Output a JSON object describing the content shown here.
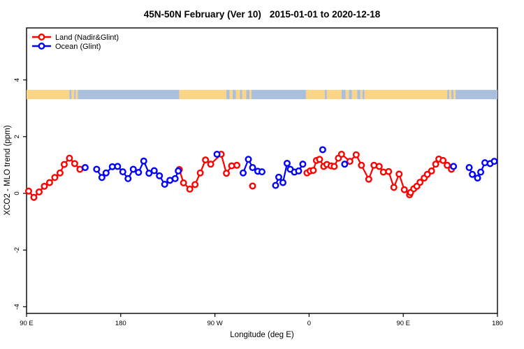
{
  "window": {
    "title": "45N-50N February (Ver 10)  2015-01-01 to 2020-12-18"
  },
  "header": {
    "title_left": "45N-50N February (Ver 10)",
    "title_right": "2015-01-01 to 2020-12-18"
  },
  "legend": {
    "position": "top-left-inside",
    "items": [
      {
        "label": "Land (Nadir&Glint)",
        "color": "#FF0000"
      },
      {
        "label": "Ocean (Glint)",
        "color": "#0000FF"
      }
    ]
  },
  "chart_data": {
    "type": "line",
    "title": "45N-50N February (Ver 10)  2015-01-01 to 2020-12-18",
    "xlabel": "Longitude (deg E)",
    "ylabel": "XCO2 - MLO trend (ppm)",
    "grid": "off",
    "legend_position": "top-left inside plot",
    "xlim": [
      90,
      540
    ],
    "ylim": [
      -4.3,
      5.9
    ],
    "x_ticks": [
      {
        "value": 90,
        "label": "90 E"
      },
      {
        "value": 180,
        "label": "180"
      },
      {
        "value": 270,
        "label": "90 W"
      },
      {
        "value": 360,
        "label": "0"
      },
      {
        "value": 450,
        "label": "90 E"
      },
      {
        "value": 540,
        "label": "180"
      }
    ],
    "y_ticks": [
      {
        "value": -4,
        "label": "-4"
      },
      {
        "value": -2,
        "label": "-2"
      },
      {
        "value": 0,
        "label": "0"
      },
      {
        "value": 2,
        "label": "2"
      },
      {
        "value": 4,
        "label": "4"
      }
    ],
    "map_strip": {
      "description": "45N-50N latitude world map band drawn across plot",
      "y_range_ppm": [
        3.32,
        3.65
      ],
      "land_color": "#FBD587",
      "ocean_color": "#AABFDC",
      "segments": [
        {
          "from": 90,
          "to": 131,
          "type": "land"
        },
        {
          "from": 131,
          "to": 133,
          "type": "ocean"
        },
        {
          "from": 133,
          "to": 135.5,
          "type": "land"
        },
        {
          "from": 135.5,
          "to": 137,
          "type": "ocean"
        },
        {
          "from": 137,
          "to": 139,
          "type": "land"
        },
        {
          "from": 139,
          "to": 236,
          "type": "ocean"
        },
        {
          "from": 236,
          "to": 281,
          "type": "land"
        },
        {
          "from": 281,
          "to": 284,
          "type": "ocean"
        },
        {
          "from": 284,
          "to": 287,
          "type": "land"
        },
        {
          "from": 287,
          "to": 290,
          "type": "ocean"
        },
        {
          "from": 290,
          "to": 294,
          "type": "land"
        },
        {
          "from": 294,
          "to": 296,
          "type": "ocean"
        },
        {
          "from": 296,
          "to": 300,
          "type": "land"
        },
        {
          "from": 300,
          "to": 303,
          "type": "ocean"
        },
        {
          "from": 303,
          "to": 305,
          "type": "land"
        },
        {
          "from": 305,
          "to": 357,
          "type": "ocean"
        },
        {
          "from": 357,
          "to": 375,
          "type": "land"
        },
        {
          "from": 375,
          "to": 377,
          "type": "ocean"
        },
        {
          "from": 377,
          "to": 391,
          "type": "land"
        },
        {
          "from": 391,
          "to": 395,
          "type": "ocean"
        },
        {
          "from": 395,
          "to": 398,
          "type": "land"
        },
        {
          "from": 398,
          "to": 401,
          "type": "ocean"
        },
        {
          "from": 401,
          "to": 406,
          "type": "land"
        },
        {
          "from": 406,
          "to": 409,
          "type": "ocean"
        },
        {
          "from": 409,
          "to": 411,
          "type": "land"
        },
        {
          "from": 411,
          "to": 413,
          "type": "ocean"
        },
        {
          "from": 413,
          "to": 492,
          "type": "land"
        },
        {
          "from": 492,
          "to": 494,
          "type": "ocean"
        },
        {
          "from": 494,
          "to": 496,
          "type": "land"
        },
        {
          "from": 496,
          "to": 498,
          "type": "ocean"
        },
        {
          "from": 498,
          "to": 500,
          "type": "land"
        },
        {
          "from": 500,
          "to": 540,
          "type": "ocean"
        }
      ]
    },
    "series": [
      {
        "name": "Land (Nadir&Glint)",
        "color": "#FF0000",
        "marker": "open-circle",
        "line": true,
        "segments": [
          [
            [
              92,
              0.08
            ],
            [
              97,
              -0.14
            ],
            [
              102,
              0.05
            ],
            [
              107,
              0.25
            ],
            [
              112,
              0.38
            ],
            [
              117,
              0.56
            ],
            [
              122,
              0.72
            ],
            [
              126,
              1.02
            ],
            [
              131,
              1.24
            ],
            [
              136,
              1.05
            ],
            [
              141,
              0.85
            ]
          ],
          [
            [
              236,
              0.84
            ],
            [
              240,
              0.37
            ],
            [
              246,
              0.15
            ],
            [
              251,
              0.31
            ],
            [
              256,
              0.72
            ],
            [
              261,
              1.18
            ],
            [
              266,
              1.03
            ],
            [
              276,
              1.38
            ],
            [
              281,
              0.71
            ],
            [
              286,
              0.97
            ],
            [
              291,
              0.99
            ]
          ],
          [
            [
              306,
              0.26
            ]
          ],
          [
            [
              358,
              0.72
            ],
            [
              361,
              0.79
            ],
            [
              364,
              0.81
            ],
            [
              367,
              1.16
            ],
            [
              370,
              1.2
            ],
            [
              374,
              0.95
            ],
            [
              377,
              1.02
            ],
            [
              381,
              0.97
            ],
            [
              384,
              0.95
            ],
            [
              388,
              1.24
            ],
            [
              391,
              1.38
            ],
            [
              399,
              1.13
            ],
            [
              405,
              1.36
            ],
            [
              410,
              0.99
            ],
            [
              417,
              0.5
            ],
            [
              422,
              0.99
            ],
            [
              427,
              0.95
            ],
            [
              431,
              0.75
            ],
            [
              436,
              0.77
            ],
            [
              441,
              0.21
            ],
            [
              446,
              0.68
            ],
            [
              451,
              0.13
            ],
            [
              456,
              -0.05
            ],
            [
              457,
              0.03
            ],
            [
              460,
              0.16
            ],
            [
              463,
              0.25
            ],
            [
              466,
              0.39
            ],
            [
              470,
              0.54
            ],
            [
              473,
              0.67
            ],
            [
              477,
              0.79
            ],
            [
              481,
              1.03
            ],
            [
              484,
              1.21
            ],
            [
              488,
              1.16
            ],
            [
              492,
              0.99
            ],
            [
              496,
              0.85
            ]
          ]
        ]
      },
      {
        "name": "Ocean (Glint)",
        "color": "#0000FF",
        "marker": "open-circle",
        "line": true,
        "segments": [
          [
            [
              146,
              0.91
            ]
          ],
          [
            [
              157,
              0.85
            ],
            [
              162,
              0.56
            ],
            [
              166,
              0.72
            ],
            [
              172,
              0.94
            ],
            [
              177,
              0.95
            ],
            [
              182,
              0.76
            ],
            [
              187,
              0.52
            ],
            [
              192,
              0.85
            ],
            [
              197,
              0.74
            ],
            [
              202,
              1.14
            ],
            [
              207,
              0.71
            ],
            [
              212,
              0.8
            ],
            [
              217,
              0.62
            ],
            [
              222,
              0.32
            ],
            [
              227,
              0.46
            ],
            [
              232,
              0.52
            ],
            [
              235,
              0.79
            ]
          ],
          [
            [
              272,
              1.38
            ]
          ],
          [
            [
              297,
              0.72
            ],
            [
              302,
              1.2
            ],
            [
              306,
              0.91
            ],
            [
              311,
              0.78
            ],
            [
              315,
              0.76
            ]
          ],
          [
            [
              328,
              0.28
            ],
            [
              331,
              0.57
            ],
            [
              335,
              0.38
            ],
            [
              339,
              1.06
            ],
            [
              342,
              0.85
            ],
            [
              346,
              0.75
            ],
            [
              350,
              0.79
            ],
            [
              354,
              1.03
            ]
          ],
          [
            [
              373,
              1.54
            ]
          ],
          [
            [
              394,
              1.03
            ]
          ],
          [
            [
              498,
              0.95
            ]
          ],
          [
            [
              513,
              0.91
            ],
            [
              516,
              0.67
            ],
            [
              521,
              0.54
            ],
            [
              524,
              0.75
            ],
            [
              528,
              1.08
            ],
            [
              533,
              1.05
            ],
            [
              537,
              1.13
            ]
          ]
        ]
      }
    ]
  },
  "colors": {
    "land_series": "#FF0000",
    "ocean_series": "#0000FF",
    "map_land": "#FBD587",
    "map_ocean": "#AABFDC",
    "axis": "#000000",
    "background": "#FFFFFF"
  }
}
